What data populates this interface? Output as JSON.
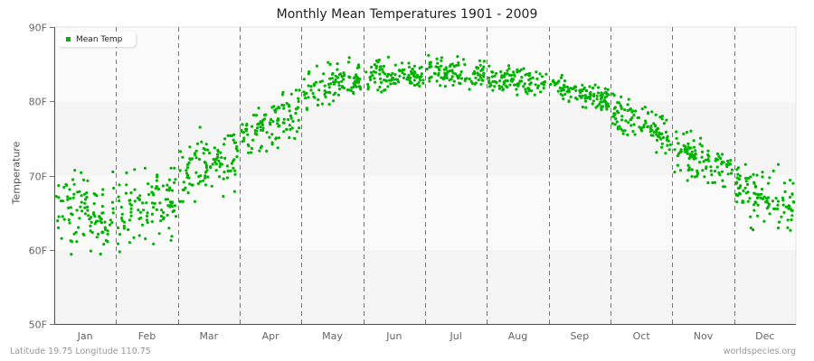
{
  "chart_data": {
    "type": "scatter",
    "title": "Monthly Mean Temperatures 1901 - 2009",
    "xlabel": "",
    "ylabel": "Temperature",
    "ylim": [
      50,
      90
    ],
    "yticks": [
      "50F",
      "60F",
      "70F",
      "80F",
      "90F"
    ],
    "categories": [
      "Jan",
      "Feb",
      "Mar",
      "Apr",
      "May",
      "Jun",
      "Jul",
      "Aug",
      "Sep",
      "Oct",
      "Nov",
      "Dec"
    ],
    "grid": "alternating horizontal bands, dashed vertical month separators",
    "legend": {
      "position": "top-left",
      "entries": [
        "Mean Temp"
      ]
    },
    "series": [
      {
        "name": "Mean Temp",
        "color": "#00b300",
        "points_per_month": 109,
        "monthly_stats": [
          {
            "month": "Jan",
            "mean": 65.0,
            "min": 58.0,
            "max": 71.5
          },
          {
            "month": "Feb",
            "mean": 66.0,
            "min": 57.5,
            "max": 71.0
          },
          {
            "month": "Mar",
            "mean": 71.5,
            "min": 66.5,
            "max": 78.0
          },
          {
            "month": "Apr",
            "mean": 77.0,
            "min": 72.0,
            "max": 81.5
          },
          {
            "month": "May",
            "mean": 82.0,
            "min": 78.5,
            "max": 86.0
          },
          {
            "month": "Jun",
            "mean": 83.5,
            "min": 80.5,
            "max": 86.0
          },
          {
            "month": "Jul",
            "mean": 83.8,
            "min": 81.5,
            "max": 86.5
          },
          {
            "month": "Aug",
            "mean": 82.8,
            "min": 80.5,
            "max": 85.0
          },
          {
            "month": "Sep",
            "mean": 81.2,
            "min": 78.5,
            "max": 83.5
          },
          {
            "month": "Oct",
            "mean": 77.0,
            "min": 73.0,
            "max": 81.0
          },
          {
            "month": "Nov",
            "mean": 72.0,
            "min": 68.5,
            "max": 76.0
          },
          {
            "month": "Dec",
            "mean": 67.0,
            "min": 61.0,
            "max": 71.5
          }
        ]
      }
    ]
  },
  "footer": {
    "location": "Latitude 19.75 Longitude 110.75",
    "source": "worldspecies.org"
  }
}
